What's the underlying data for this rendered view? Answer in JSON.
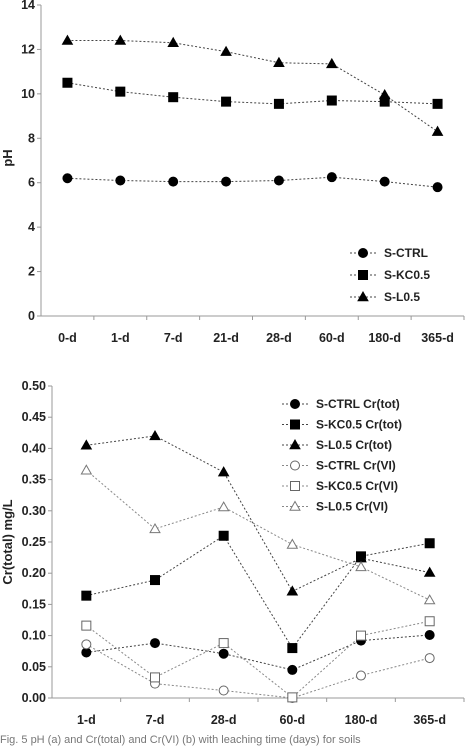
{
  "chart_data": [
    {
      "type": "line",
      "ylabel": "pH",
      "xlabel": "",
      "categories": [
        "0-d",
        "1-d",
        "7-d",
        "21-d",
        "28-d",
        "60-d",
        "180-d",
        "365-d"
      ],
      "ylim": [
        0,
        14
      ],
      "yticks": [
        "0",
        "2",
        "4",
        "6",
        "8",
        "10",
        "12",
        "14"
      ],
      "grid": false,
      "legend_position": "bottom-right",
      "series": [
        {
          "name": "S-CTRL",
          "marker": "circle",
          "filled": true,
          "values": [
            6.2,
            6.1,
            6.05,
            6.05,
            6.1,
            6.25,
            6.05,
            5.8
          ]
        },
        {
          "name": "S-KC0.5",
          "marker": "square",
          "filled": true,
          "values": [
            10.5,
            10.1,
            9.85,
            9.65,
            9.55,
            9.7,
            9.65,
            9.55
          ]
        },
        {
          "name": "S-L0.5",
          "marker": "triangle",
          "filled": true,
          "values": [
            12.4,
            12.4,
            12.3,
            11.9,
            11.4,
            11.35,
            9.95,
            8.3
          ]
        }
      ]
    },
    {
      "type": "line",
      "ylabel": "Cr(total) mg/L",
      "xlabel": "",
      "categories": [
        "1-d",
        "7-d",
        "28-d",
        "60-d",
        "180-d",
        "365-d"
      ],
      "ylim": [
        0,
        0.5
      ],
      "yticks": [
        "0.00",
        "0.05",
        "0.10",
        "0.15",
        "0.20",
        "0.25",
        "0.30",
        "0.35",
        "0.40",
        "0.45",
        "0.50"
      ],
      "grid": false,
      "legend_position": "top-right",
      "series": [
        {
          "name": "S-CTRL Cr(tot)",
          "marker": "circle",
          "filled": true,
          "values": [
            0.073,
            0.088,
            0.071,
            0.045,
            0.092,
            0.101
          ]
        },
        {
          "name": "S-KC0.5 Cr(tot)",
          "marker": "square",
          "filled": true,
          "values": [
            0.164,
            0.189,
            0.26,
            0.08,
            0.227,
            0.248
          ]
        },
        {
          "name": "S-L0.5 Cr(tot)",
          "marker": "triangle",
          "filled": true,
          "values": [
            0.405,
            0.42,
            0.362,
            0.171,
            0.224,
            0.201
          ]
        },
        {
          "name": "S-CTRL Cr(VI)",
          "marker": "circle",
          "filled": false,
          "values": [
            0.086,
            0.023,
            0.012,
            0.0,
            0.036,
            0.064
          ]
        },
        {
          "name": "S-KC0.5 Cr(VI)",
          "marker": "square",
          "filled": false,
          "values": [
            0.116,
            0.033,
            0.088,
            0.001,
            0.1,
            0.123
          ]
        },
        {
          "name": "S-L0.5 Cr(VI)",
          "marker": "triangle",
          "filled": false,
          "values": [
            0.365,
            0.271,
            0.306,
            0.246,
            0.21,
            0.157
          ]
        }
      ]
    }
  ],
  "caption": "Fig. 5  pH (a) and Cr(total) and Cr(VI) (b) with leaching time (days) for soils"
}
